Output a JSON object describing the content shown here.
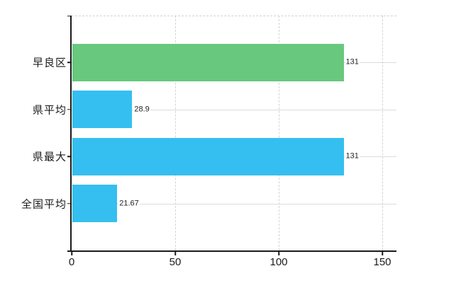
{
  "chart_data": {
    "type": "bar",
    "orientation": "horizontal",
    "title": "",
    "categories": [
      "早良区",
      "県平均",
      "県最大",
      "全国平均"
    ],
    "values": [
      131,
      28.9,
      131,
      21.67
    ],
    "value_labels": [
      "131",
      "28.9",
      "131",
      "21.67"
    ],
    "bar_colors": [
      "#68c87e",
      "#35bff0",
      "#35bff0",
      "#35bff0"
    ],
    "x_ticks": [
      0,
      50,
      100,
      150
    ],
    "x_tick_labels": [
      "0",
      "50",
      "100",
      "150"
    ],
    "xlim": [
      0,
      157
    ],
    "grid": "on",
    "gridline_style": "vertical dashed at value ticks, solid horizontal at category rows, dashed plot top border",
    "legend": "none",
    "colors": {
      "background": "#ffffff",
      "axis": "#1a1a1a",
      "gridline": "#d9d9d9",
      "dashed_line": "#d4d4d4",
      "text": "#1a1a1a",
      "value_text": "#222222",
      "bar_green": "#68c87e",
      "bar_blue": "#35bff0"
    }
  }
}
